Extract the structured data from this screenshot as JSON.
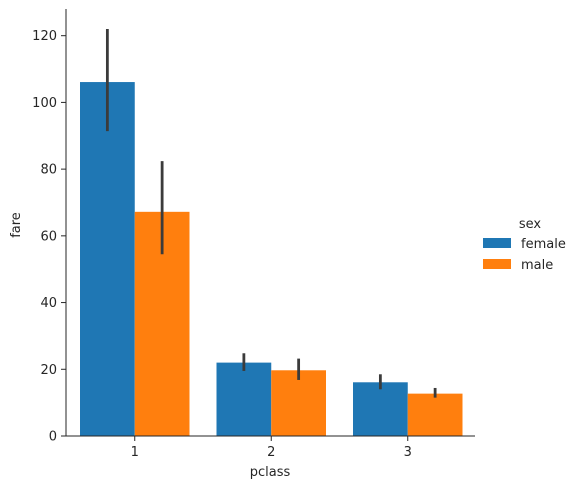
{
  "chart_data": {
    "type": "bar",
    "xlabel": "pclass",
    "ylabel": "fare",
    "categories": [
      "1",
      "2",
      "3"
    ],
    "ylim": [
      0,
      128
    ],
    "yticks": [
      0,
      20,
      40,
      60,
      80,
      100,
      120
    ],
    "legend": {
      "title": "sex",
      "placement": "right"
    },
    "series": [
      {
        "name": "female",
        "color": "#1f77b4",
        "values": [
          106.1,
          22.0,
          16.1
        ],
        "ci_low": [
          91.4,
          19.5,
          14.0
        ],
        "ci_high": [
          122.0,
          24.8,
          18.5
        ]
      },
      {
        "name": "male",
        "color": "#ff7f0e",
        "values": [
          67.2,
          19.7,
          12.7
        ],
        "ci_low": [
          54.5,
          16.8,
          11.5
        ],
        "ci_high": [
          82.4,
          23.2,
          14.4
        ]
      }
    ],
    "errorbar_color": "#3b3b3b",
    "grid": false
  }
}
